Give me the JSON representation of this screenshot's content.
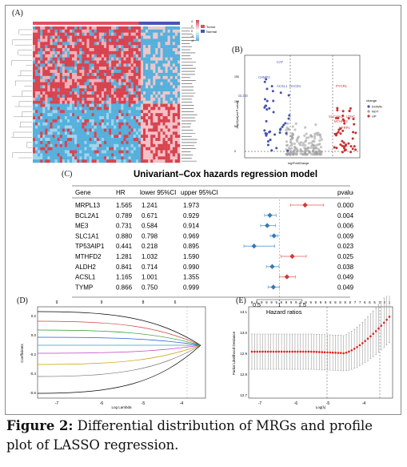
{
  "panels": {
    "a": "(A)",
    "b": "(B)",
    "c": "(C)",
    "d": "(D)",
    "e": "(E)"
  },
  "heatmap": {
    "legend_groups": [
      "Tumor",
      "Normal"
    ],
    "legend_ticks": [
      "4",
      "2",
      "0",
      "-2",
      "-4"
    ],
    "colors": {
      "tumor": "#e05060",
      "normal": "#4a54b8",
      "high": "#d8434f",
      "low": "#55b0dc"
    }
  },
  "volcano": {
    "xlabel": "log2FoldChange",
    "ylabel": "-log10(adjust P-value)",
    "legend_title": "change",
    "legend_items": [
      "DOWN",
      "NOT",
      "UP"
    ],
    "labels_down": [
      "CAT",
      "CHMP2",
      "ACSL1",
      "HACD1",
      "GLOD"
    ],
    "labels_up": [
      "PYCR1",
      "SLC16A3",
      "LDHC",
      "MTHFD2",
      "NFRP1"
    ],
    "yticks": [
      "150",
      "100",
      "50",
      "0"
    ],
    "colors": {
      "down": "#4452b0",
      "not": "#a0a0a0",
      "up": "#c8302e"
    }
  },
  "forest": {
    "title": "Univariant–Cox hazards regression model",
    "headers": {
      "gene": "Gene",
      "hr": "HR",
      "lower": "lower 95%CI",
      "upper": "upper 95%CI",
      "pvalue": "pvalue"
    },
    "rows": [
      {
        "gene": "MRPL13",
        "hr": "1.565",
        "lower": "1.241",
        "upper": "1.973",
        "p": "0.000"
      },
      {
        "gene": "BCL2A1",
        "hr": "0.789",
        "lower": "0.671",
        "upper": "0.929",
        "p": "0.004"
      },
      {
        "gene": "ME3",
        "hr": "0.731",
        "lower": "0.584",
        "upper": "0.914",
        "p": "0.006"
      },
      {
        "gene": "SLC1A1",
        "hr": "0.880",
        "lower": "0.798",
        "upper": "0.969",
        "p": "0.009"
      },
      {
        "gene": "TP53AIP1",
        "hr": "0.441",
        "lower": "0.218",
        "upper": "0.895",
        "p": "0.023"
      },
      {
        "gene": "MTHFD2",
        "hr": "1.281",
        "lower": "1.032",
        "upper": "1.590",
        "p": "0.025"
      },
      {
        "gene": "ALDH2",
        "hr": "0.841",
        "lower": "0.714",
        "upper": "0.990",
        "p": "0.038"
      },
      {
        "gene": "ACSL1",
        "hr": "1.165",
        "lower": "1.001",
        "upper": "1.355",
        "p": "0.049"
      },
      {
        "gene": "TYMP",
        "hr": "0.866",
        "lower": "0.750",
        "upper": "0.999",
        "p": "0.049"
      }
    ],
    "xticks": [
      "0.5",
      "1",
      "1.5"
    ],
    "xlabel": "Hazard ratios",
    "colors": {
      "risk": "#d03a3a",
      "protective": "#3a78b8",
      "ci_risk": "#f08080",
      "ci_protective": "#6fa8d8"
    }
  },
  "lasso_path": {
    "xlabel": "Log Lambda",
    "ylabel": "Coefficients",
    "top_ticks": [
      "9",
      "9",
      "8",
      "6"
    ],
    "xticks": [
      "-7",
      "-6",
      "-5",
      "-4"
    ],
    "yticks": [
      "0.2",
      "0.0",
      "-0.2",
      "-0.4",
      "-0.6"
    ]
  },
  "lasso_cv": {
    "xlabel": "Log(λ)",
    "ylabel": "Partial Likelihood Deviance",
    "top_ticks": [
      "9",
      "9",
      "9",
      "9",
      "9",
      "9",
      "9",
      "9",
      "9",
      "9",
      "9",
      "9",
      "9",
      "9",
      "9",
      "9",
      "8",
      "8",
      "8",
      "8",
      "8",
      "7",
      "7",
      "6",
      "6",
      "5",
      "3",
      "2",
      "1"
    ],
    "xticks": [
      "-7",
      "-6",
      "-5",
      "-4"
    ],
    "yticks": [
      "13.1",
      "13.0",
      "12.9",
      "12.8",
      "12.7"
    ]
  },
  "caption": {
    "label": "Figure 2:",
    "text": " Differential distribution of MRGs and profile plot of LASSO regression."
  }
}
